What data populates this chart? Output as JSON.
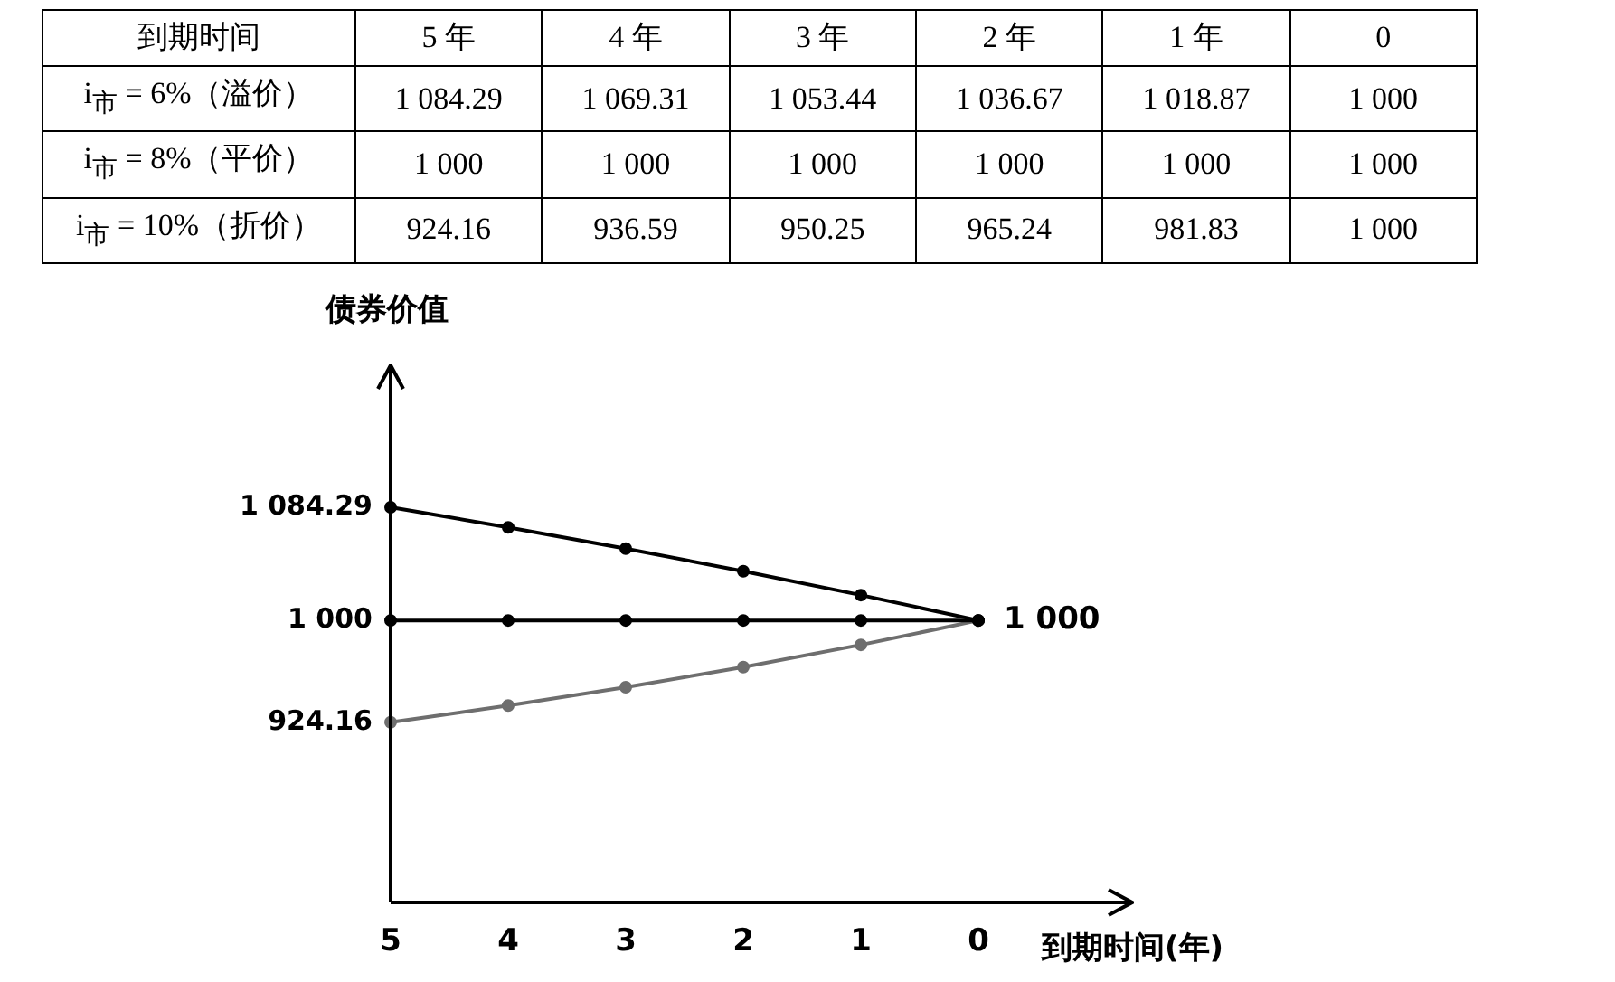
{
  "chart_data": [
    {
      "type": "heatmap",
      "xlabel": "到期时间",
      "categories": [
        "5 年",
        "4 年",
        "3 年",
        "2 年",
        "1 年",
        "0"
      ],
      "y_categories": [
        "i$_{市}$ = 6%（溢价）",
        "i$_{市}$ = 8%（平价）",
        "i$_{市}$ = 10%（折价）"
      ],
      "cells": [
        [
          1084.29,
          1069.31,
          1053.44,
          1036.67,
          1018.87,
          1000
        ],
        [
          1000,
          1000,
          1000,
          1000,
          1000,
          1000
        ],
        [
          924.16,
          936.59,
          950.25,
          965.24,
          981.83,
          1000
        ]
      ],
      "cell_labels": [
        [
          "1 084.29",
          "1 069.31",
          "1 053.44",
          "1 036.67",
          "1 018.87",
          "1 000"
        ],
        [
          "1 000",
          "1 000",
          "1 000",
          "1 000",
          "1 000",
          "1 000"
        ],
        [
          "924.16",
          "936.59",
          "950.25",
          "965.24",
          "981.83",
          "1 000"
        ]
      ]
    },
    {
      "type": "line",
      "categories": [
        "5",
        "4",
        "3",
        "2",
        "1",
        "0"
      ],
      "xlabel": "到期时间(年)",
      "ylabel": "债券价值",
      "ylim": [
        790,
        1190
      ],
      "yticks": [
        {
          "value": 924.16,
          "label": "924.16"
        },
        {
          "value": 1000,
          "label": "1 000"
        },
        {
          "value": 1084.29,
          "label": "1 084.29"
        }
      ],
      "grid": false,
      "legend": false,
      "marker": "circle",
      "line_style": "solid",
      "annotations": [
        {
          "text": "1 000",
          "x": "0",
          "y": 1000
        }
      ],
      "series": [
        {
          "color": "#000000",
          "values": [
            1084.29,
            1069.31,
            1053.44,
            1036.67,
            1018.87,
            1000
          ]
        },
        {
          "color": "#000000",
          "values": [
            1000,
            1000,
            1000,
            1000,
            1000,
            1000
          ]
        },
        {
          "color": "#6e6e6e",
          "values": [
            924.16,
            936.59,
            950.25,
            965.24,
            981.83,
            1000
          ]
        }
      ]
    }
  ]
}
